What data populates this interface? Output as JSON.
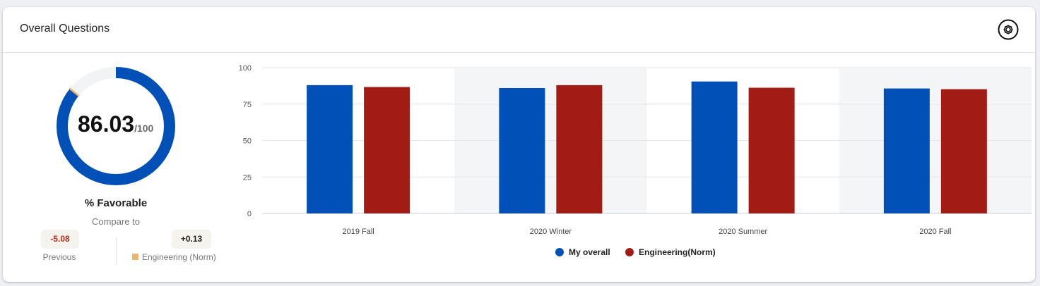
{
  "card": {
    "title": "Overall Questions",
    "settings_icon": "settings-gear-icon"
  },
  "score": {
    "value": "86.03",
    "max_label": "/100",
    "fraction": 0.8603,
    "norm_fraction": 0.859,
    "ring_color": "#0050b8",
    "track_color": "#f2f3f5",
    "norm_marker_color": "#efb562",
    "label": "% Favorable",
    "compare_label": "Compare to"
  },
  "comparisons": [
    {
      "delta": "-5.08",
      "label": "Previous"
    },
    {
      "delta": "+0.13",
      "label": "Engineering (Norm)",
      "swatch_color": "#efb562"
    }
  ],
  "chart_data": {
    "type": "bar",
    "categories": [
      "2019 Fall",
      "2020 Winter",
      "2020 Summer",
      "2020 Fall"
    ],
    "series": [
      {
        "name": "My overall",
        "values": [
          88,
          86,
          90.5,
          85.7
        ],
        "color": "#0050b8"
      },
      {
        "name": "Engineering(Norm)",
        "values": [
          86.7,
          88,
          86.2,
          85.2
        ],
        "color": "#a31b15"
      }
    ],
    "yticks": [
      0,
      25,
      50,
      75,
      100
    ],
    "ylim": [
      0,
      100
    ],
    "grid": true,
    "alternate_band_color": "#f4f5f7",
    "legend_position": "bottom-center"
  }
}
